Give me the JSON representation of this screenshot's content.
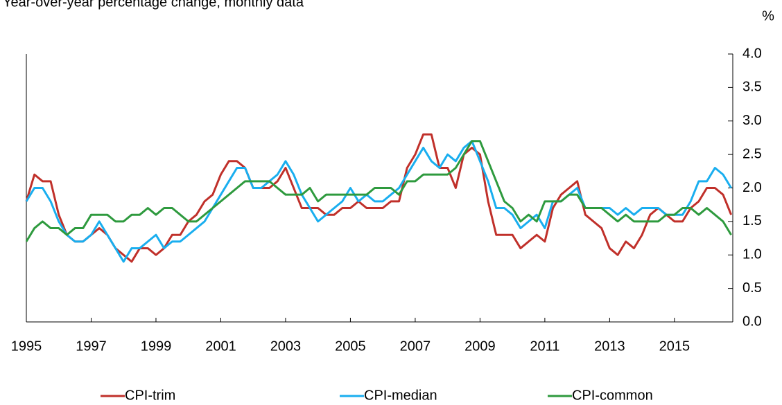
{
  "chart_data": {
    "type": "line",
    "subtitle": "Year-over-year percentage change, monthly data",
    "y_unit": "%",
    "x": [
      1995,
      1995.25,
      1995.5,
      1995.75,
      1996,
      1996.25,
      1996.5,
      1996.75,
      1997,
      1997.25,
      1997.5,
      1997.75,
      1998,
      1998.25,
      1998.5,
      1998.75,
      1999,
      1999.25,
      1999.5,
      1999.75,
      2000,
      2000.25,
      2000.5,
      2000.75,
      2001,
      2001.25,
      2001.5,
      2001.75,
      2002,
      2002.25,
      2002.5,
      2002.75,
      2003,
      2003.25,
      2003.5,
      2003.75,
      2004,
      2004.25,
      2004.5,
      2004.75,
      2005,
      2005.25,
      2005.5,
      2005.75,
      2006,
      2006.25,
      2006.5,
      2006.75,
      2007,
      2007.25,
      2007.5,
      2007.75,
      2008,
      2008.25,
      2008.5,
      2008.75,
      2009,
      2009.25,
      2009.5,
      2009.75,
      2010,
      2010.25,
      2010.5,
      2010.75,
      2011,
      2011.25,
      2011.5,
      2011.75,
      2012,
      2012.25,
      2012.5,
      2012.75,
      2013,
      2013.25,
      2013.5,
      2013.75,
      2014,
      2014.25,
      2014.5,
      2014.75,
      2015,
      2015.25,
      2015.5,
      2015.75,
      2016,
      2016.25,
      2016.5,
      2016.75
    ],
    "series": [
      {
        "name": "CPI-trim",
        "color": "#c0302a",
        "values": [
          1.8,
          2.2,
          2.1,
          2.1,
          1.6,
          1.3,
          1.2,
          1.2,
          1.3,
          1.4,
          1.3,
          1.1,
          1.0,
          0.9,
          1.1,
          1.1,
          1.0,
          1.1,
          1.3,
          1.3,
          1.5,
          1.6,
          1.8,
          1.9,
          2.2,
          2.4,
          2.4,
          2.3,
          2.0,
          2.0,
          2.0,
          2.1,
          2.3,
          2.0,
          1.7,
          1.7,
          1.7,
          1.6,
          1.6,
          1.7,
          1.7,
          1.8,
          1.7,
          1.7,
          1.7,
          1.8,
          1.8,
          2.3,
          2.5,
          2.8,
          2.8,
          2.3,
          2.3,
          2.0,
          2.5,
          2.6,
          2.5,
          1.8,
          1.3,
          1.3,
          1.3,
          1.1,
          1.2,
          1.3,
          1.2,
          1.7,
          1.9,
          2.0,
          2.1,
          1.6,
          1.5,
          1.4,
          1.1,
          1.0,
          1.2,
          1.1,
          1.3,
          1.6,
          1.7,
          1.6,
          1.5,
          1.5,
          1.7,
          1.8,
          2.0,
          2.0,
          1.9,
          1.6
        ]
      },
      {
        "name": "CPI-median",
        "color": "#19aeef",
        "values": [
          1.8,
          2.0,
          2.0,
          1.8,
          1.5,
          1.3,
          1.2,
          1.2,
          1.3,
          1.5,
          1.3,
          1.1,
          0.9,
          1.1,
          1.1,
          1.2,
          1.3,
          1.1,
          1.2,
          1.2,
          1.3,
          1.4,
          1.5,
          1.7,
          1.9,
          2.1,
          2.3,
          2.3,
          2.0,
          2.0,
          2.1,
          2.2,
          2.4,
          2.2,
          1.9,
          1.7,
          1.5,
          1.6,
          1.7,
          1.8,
          2.0,
          1.8,
          1.9,
          1.8,
          1.8,
          1.9,
          2.0,
          2.2,
          2.4,
          2.6,
          2.4,
          2.3,
          2.5,
          2.4,
          2.6,
          2.7,
          2.4,
          2.1,
          1.7,
          1.7,
          1.6,
          1.4,
          1.5,
          1.6,
          1.4,
          1.8,
          1.8,
          1.9,
          2.0,
          1.7,
          1.7,
          1.7,
          1.7,
          1.6,
          1.7,
          1.6,
          1.7,
          1.7,
          1.7,
          1.6,
          1.6,
          1.6,
          1.8,
          2.1,
          2.1,
          2.3,
          2.2,
          2.0
        ]
      },
      {
        "name": "CPI-common",
        "color": "#2e9a3e",
        "values": [
          1.2,
          1.4,
          1.5,
          1.4,
          1.4,
          1.3,
          1.4,
          1.4,
          1.6,
          1.6,
          1.6,
          1.5,
          1.5,
          1.6,
          1.6,
          1.7,
          1.6,
          1.7,
          1.7,
          1.6,
          1.5,
          1.5,
          1.6,
          1.7,
          1.8,
          1.9,
          2.0,
          2.1,
          2.1,
          2.1,
          2.1,
          2.0,
          1.9,
          1.9,
          1.9,
          2.0,
          1.8,
          1.9,
          1.9,
          1.9,
          1.9,
          1.9,
          1.9,
          2.0,
          2.0,
          2.0,
          1.9,
          2.1,
          2.1,
          2.2,
          2.2,
          2.2,
          2.2,
          2.3,
          2.5,
          2.7,
          2.7,
          2.4,
          2.1,
          1.8,
          1.7,
          1.5,
          1.6,
          1.5,
          1.8,
          1.8,
          1.8,
          1.9,
          1.9,
          1.7,
          1.7,
          1.7,
          1.6,
          1.5,
          1.6,
          1.5,
          1.5,
          1.5,
          1.5,
          1.6,
          1.6,
          1.7,
          1.7,
          1.6,
          1.7,
          1.6,
          1.5,
          1.3
        ]
      }
    ],
    "xlim": [
      1995,
      2016.8
    ],
    "xticks": [
      1995,
      1997,
      1999,
      2001,
      2003,
      2005,
      2007,
      2009,
      2011,
      2013,
      2015
    ],
    "ylim": [
      0,
      4
    ],
    "yticks": [
      {
        "value": 0,
        "label": "0.0"
      },
      0.5,
      {
        "value": 1,
        "label": "1.0"
      },
      1.5,
      {
        "value": 2,
        "label": "2.0"
      },
      2.5,
      {
        "value": 3,
        "label": "3.0"
      },
      3.5,
      {
        "value": 4,
        "label": "4.0"
      }
    ],
    "y_axis_side": "right",
    "grid": false,
    "legend": "bottom"
  }
}
